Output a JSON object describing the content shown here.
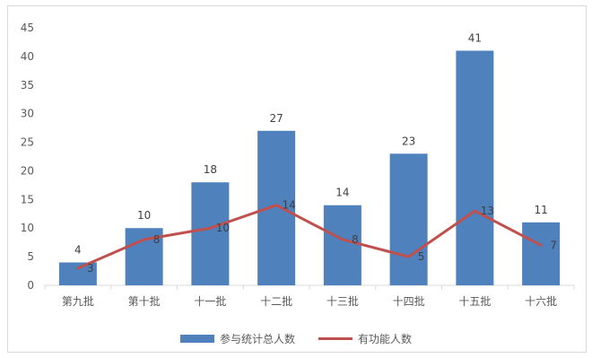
{
  "chart_data": {
    "type": "bar",
    "categories": [
      "第九批",
      "第十批",
      "十一批",
      "十二批",
      "十三批",
      "十四批",
      "十五批",
      "十六批"
    ],
    "series": [
      {
        "name": "参与统计总人数",
        "type": "bar",
        "color": "#4f81bd",
        "values": [
          4,
          10,
          18,
          27,
          14,
          23,
          41,
          11
        ]
      },
      {
        "name": "有功能人数",
        "type": "line",
        "color": "#c0504d",
        "values": [
          3,
          8,
          10,
          14,
          8,
          5,
          13,
          7
        ]
      }
    ],
    "ylim": [
      0,
      45
    ],
    "yticks": [
      0,
      5,
      10,
      15,
      20,
      25,
      30,
      35,
      40,
      45
    ],
    "grid": false,
    "legend_position": "bottom"
  }
}
